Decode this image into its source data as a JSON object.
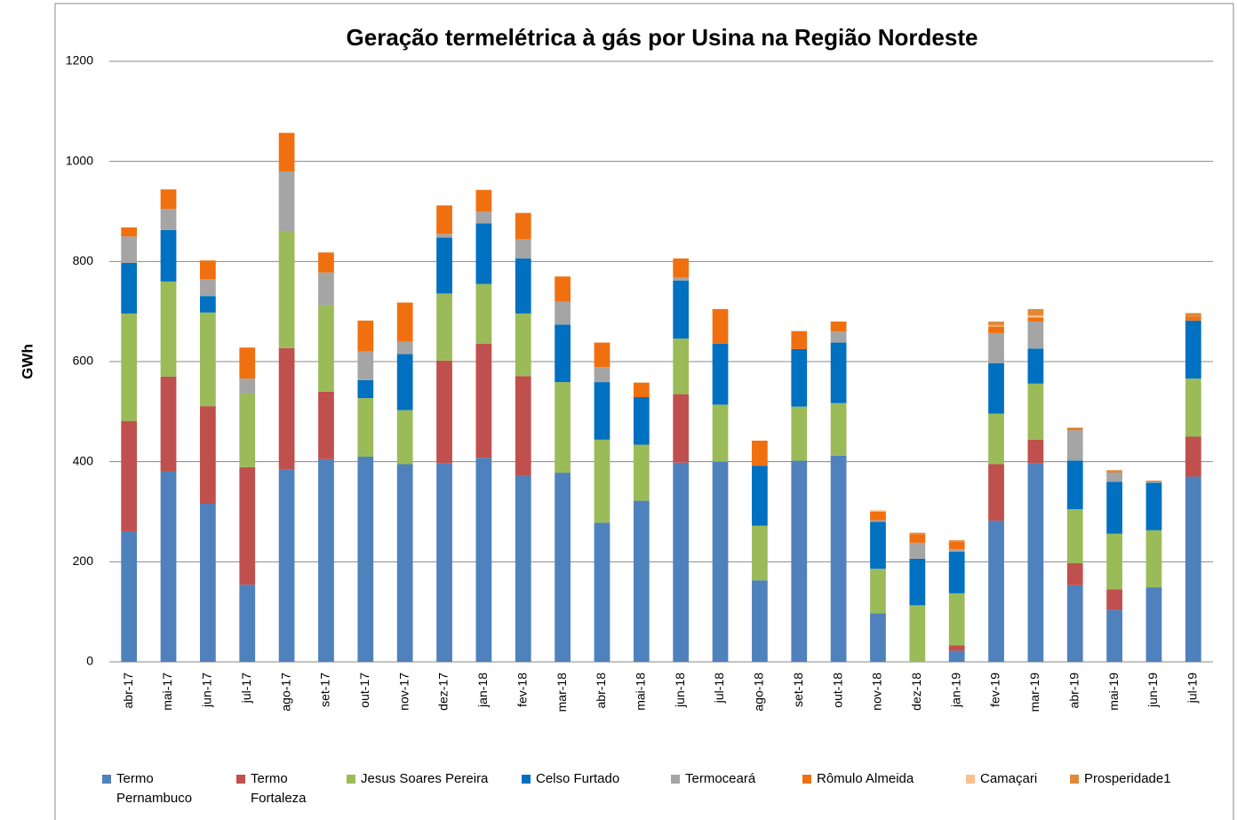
{
  "chart_data": {
    "type": "stacked-bar",
    "title": "Geração termelétrica à gás por Usina na Região Nordeste",
    "y_label": "GWh",
    "categories": [
      "abr-17",
      "mai-17",
      "jun-17",
      "jul-17",
      "ago-17",
      "set-17",
      "out-17",
      "nov-17",
      "dez-17",
      "jan-18",
      "fev-18",
      "mar-18",
      "abr-18",
      "mai-18",
      "jun-18",
      "jul-18",
      "ago-18",
      "set-18",
      "out-18",
      "nov-18",
      "dez-18",
      "jan-19",
      "fev-19",
      "mar-19",
      "abr-19",
      "mai-19",
      "jun-19",
      "jul-19"
    ],
    "series": [
      {
        "name": "Termo Pernambuco",
        "color": "#4f81bd",
        "values": [
          261,
          380,
          316,
          154,
          385,
          405,
          410,
          395,
          397,
          408,
          372,
          378,
          278,
          322,
          398,
          400,
          163,
          402,
          412,
          97,
          0,
          22,
          282,
          397,
          153,
          104,
          149,
          370
        ]
      },
      {
        "name": "Termo Fortaleza",
        "color": "#c0504d",
        "values": [
          220,
          190,
          195,
          235,
          242,
          135,
          0,
          0,
          205,
          228,
          199,
          0,
          0,
          0,
          137,
          0,
          0,
          0,
          0,
          0,
          0,
          11,
          113,
          47,
          44,
          41,
          0,
          80
        ]
      },
      {
        "name": "Jesus Soares Pereira",
        "color": "#9bbb59",
        "values": [
          215,
          190,
          187,
          147,
          233,
          173,
          117,
          108,
          134,
          119,
          125,
          181,
          166,
          112,
          111,
          114,
          109,
          108,
          105,
          89,
          113,
          104,
          101,
          112,
          108,
          111,
          114,
          116
        ]
      },
      {
        "name": "Celso Furtado",
        "color": "#0070c0",
        "values": [
          101,
          103,
          33,
          0,
          0,
          0,
          36,
          112,
          112,
          121,
          110,
          115,
          115,
          95,
          116,
          122,
          120,
          115,
          121,
          94,
          93,
          83,
          101,
          70,
          97,
          104,
          95,
          116
        ]
      },
      {
        "name": "Termoceará",
        "color": "#a5a5a5",
        "values": [
          53,
          42,
          34,
          30,
          120,
          65,
          57,
          25,
          7,
          24,
          39,
          46,
          30,
          0,
          6,
          0,
          0,
          0,
          22,
          3,
          32,
          5,
          60,
          54,
          61,
          19,
          2,
          0
        ]
      },
      {
        "name": "Rômulo Almeida",
        "color": "#f07010",
        "values": [
          18,
          39,
          37,
          62,
          77,
          40,
          62,
          78,
          57,
          43,
          52,
          50,
          49,
          29,
          38,
          69,
          50,
          36,
          20,
          17,
          17,
          15,
          13,
          8,
          3,
          2,
          2,
          8
        ]
      },
      {
        "name": "Camaçari",
        "color": "#fac090",
        "values": [
          0,
          0,
          0,
          0,
          0,
          0,
          0,
          0,
          0,
          0,
          0,
          0,
          0,
          0,
          0,
          0,
          0,
          0,
          0,
          3,
          0,
          0,
          2,
          4,
          0,
          0,
          0,
          0
        ]
      },
      {
        "name": "Prosperidade1",
        "color": "#e0893a",
        "values": [
          0,
          0,
          0,
          0,
          0,
          0,
          0,
          0,
          0,
          0,
          0,
          0,
          0,
          0,
          0,
          0,
          0,
          0,
          0,
          0,
          3,
          3,
          8,
          13,
          2,
          2,
          0,
          7
        ]
      }
    ],
    "ylim": [
      0,
      1200
    ],
    "yticks": [
      0,
      200,
      400,
      600,
      800,
      1000,
      1200
    ],
    "grid": true,
    "legend": "bottom"
  }
}
